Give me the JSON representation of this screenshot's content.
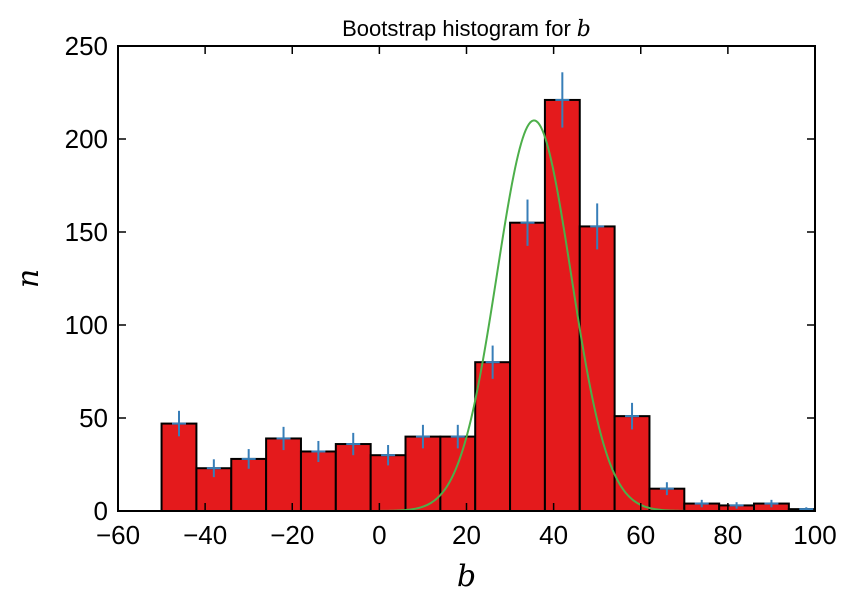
{
  "chart_data": {
    "type": "bar",
    "title": "Bootstrap histogram for",
    "title_variable": "b",
    "xlabel": "b",
    "ylabel": "n",
    "xlim": [
      -60,
      100
    ],
    "ylim": [
      0,
      250
    ],
    "x_ticks": [
      -60,
      -40,
      -20,
      0,
      20,
      40,
      60,
      80,
      100
    ],
    "x_tick_labels": [
      "−60",
      "−40",
      "−20",
      "0",
      "20",
      "40",
      "60",
      "80",
      "100"
    ],
    "y_ticks": [
      0,
      50,
      100,
      150,
      200,
      250
    ],
    "y_tick_labels": [
      "0",
      "50",
      "100",
      "150",
      "200",
      "250"
    ],
    "bin_edges": [
      -50,
      -42,
      -34,
      -26,
      -18,
      -10,
      -2,
      6,
      14,
      22,
      30,
      38,
      46,
      54,
      62,
      70,
      78,
      86,
      94,
      102
    ],
    "counts": [
      47,
      23,
      28,
      39,
      32,
      36,
      30,
      40,
      40,
      80,
      155,
      221,
      153,
      51,
      12,
      4,
      3,
      4,
      1
    ],
    "error_markers": [
      {
        "x": -46,
        "y": 47
      },
      {
        "x": -38,
        "y": 23
      },
      {
        "x": -30,
        "y": 28
      },
      {
        "x": -22,
        "y": 39
      },
      {
        "x": -14,
        "y": 32
      },
      {
        "x": -6,
        "y": 36
      },
      {
        "x": 2,
        "y": 30
      },
      {
        "x": 10,
        "y": 40
      },
      {
        "x": 18,
        "y": 40
      },
      {
        "x": 26,
        "y": 80
      },
      {
        "x": 34,
        "y": 155
      },
      {
        "x": 42,
        "y": 221
      },
      {
        "x": 50,
        "y": 153
      },
      {
        "x": 58,
        "y": 51
      },
      {
        "x": 66,
        "y": 12
      },
      {
        "x": 74,
        "y": 4
      },
      {
        "x": 82,
        "y": 3
      },
      {
        "x": 90,
        "y": 4
      },
      {
        "x": 98,
        "y": 1
      }
    ],
    "gaussian_fit": {
      "mean": 35.5,
      "sigma": 8.5,
      "amplitude": 210,
      "x_range": [
        0,
        70
      ]
    },
    "colors": {
      "bar_fill": "#e41a1c",
      "bar_edge": "#000000",
      "error_markers": "#377eb8",
      "fit_curve": "#4daf4a"
    }
  }
}
